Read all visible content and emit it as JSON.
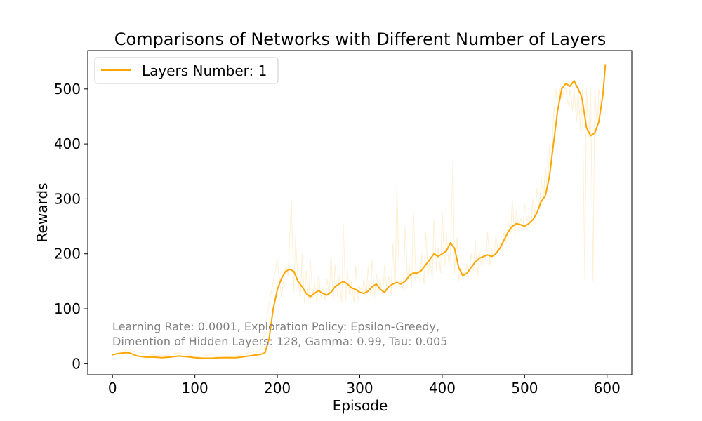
{
  "chart_data": {
    "type": "line",
    "title": "Comparisons of Networks with Different Number of Layers",
    "xlabel": "Episode",
    "ylabel": "Rewards",
    "xlim": [
      -30,
      630
    ],
    "ylim": [
      -20,
      570
    ],
    "xticks": [
      0,
      100,
      200,
      300,
      400,
      500,
      600
    ],
    "yticks": [
      0,
      100,
      200,
      300,
      400,
      500
    ],
    "grid": false,
    "legend_position": "top-left",
    "annotation": [
      "Learning Rate: 0.0001, Exploration Policy: Epsilon-Greedy,",
      "Dimention of Hidden Layers: 128, Gamma: 0.99, Tau: 0.005"
    ],
    "colors": {
      "series": "#FFA500",
      "raw": "#FFE4B5",
      "annotation": "#808080"
    },
    "series": [
      {
        "name": "Layers Number: 1",
        "smoothed": {
          "x": [
            0,
            5,
            10,
            15,
            20,
            25,
            30,
            40,
            50,
            60,
            70,
            80,
            90,
            100,
            110,
            120,
            130,
            140,
            150,
            160,
            170,
            175,
            180,
            185,
            190,
            195,
            200,
            205,
            210,
            215,
            220,
            225,
            230,
            235,
            240,
            245,
            250,
            255,
            260,
            265,
            270,
            275,
            280,
            285,
            290,
            295,
            300,
            305,
            310,
            315,
            320,
            325,
            330,
            335,
            340,
            345,
            350,
            355,
            360,
            365,
            370,
            375,
            380,
            385,
            390,
            395,
            400,
            405,
            410,
            415,
            420,
            425,
            430,
            435,
            440,
            445,
            450,
            455,
            460,
            465,
            470,
            475,
            480,
            485,
            490,
            495,
            500,
            505,
            510,
            515,
            520,
            525,
            530,
            535,
            540,
            545,
            550,
            555,
            560,
            562,
            565,
            568,
            570,
            575,
            580,
            585,
            590,
            595,
            598
          ],
          "y": [
            16,
            18,
            19,
            20,
            20,
            17,
            14,
            12,
            12,
            11,
            12,
            14,
            13,
            11,
            10,
            10,
            11,
            11,
            11,
            13,
            15,
            16,
            17,
            20,
            45,
            100,
            135,
            155,
            168,
            172,
            168,
            150,
            140,
            128,
            122,
            128,
            133,
            128,
            125,
            130,
            140,
            145,
            150,
            145,
            138,
            135,
            130,
            128,
            132,
            140,
            145,
            135,
            130,
            140,
            145,
            148,
            145,
            150,
            160,
            165,
            165,
            170,
            180,
            190,
            200,
            195,
            200,
            205,
            220,
            210,
            175,
            160,
            165,
            175,
            185,
            192,
            195,
            198,
            195,
            200,
            210,
            225,
            240,
            250,
            255,
            253,
            250,
            255,
            262,
            275,
            295,
            305,
            340,
            400,
            460,
            500,
            510,
            505,
            515,
            508,
            500,
            490,
            480,
            430,
            415,
            420,
            440,
            490,
            545
          ]
        },
        "raw": {
          "x": [
            0,
            20,
            40,
            60,
            80,
            100,
            120,
            140,
            160,
            180,
            185,
            190,
            195,
            200,
            205,
            210,
            213,
            217,
            220,
            222,
            225,
            228,
            230,
            233,
            235,
            238,
            240,
            243,
            245,
            248,
            250,
            253,
            255,
            258,
            260,
            263,
            265,
            268,
            270,
            273,
            275,
            278,
            280,
            283,
            285,
            288,
            290,
            293,
            295,
            298,
            300,
            303,
            305,
            308,
            310,
            313,
            315,
            318,
            320,
            323,
            325,
            328,
            330,
            333,
            335,
            338,
            340,
            343,
            345,
            348,
            350,
            353,
            355,
            358,
            360,
            363,
            365,
            368,
            370,
            373,
            375,
            378,
            380,
            383,
            385,
            388,
            390,
            393,
            395,
            398,
            400,
            403,
            405,
            408,
            410,
            413,
            415,
            418,
            420,
            423,
            425,
            428,
            430,
            433,
            435,
            438,
            440,
            443,
            445,
            448,
            450,
            453,
            455,
            458,
            460,
            463,
            465,
            468,
            470,
            473,
            475,
            478,
            480,
            483,
            485,
            488,
            490,
            493,
            495,
            498,
            500,
            503,
            505,
            508,
            510,
            513,
            515,
            518,
            520,
            523,
            525,
            528,
            530,
            533,
            535,
            538,
            540,
            543,
            545,
            548,
            550,
            553,
            555,
            558,
            560,
            563,
            565,
            568,
            570,
            573,
            575,
            578,
            580,
            583,
            585,
            588,
            590,
            593,
            595,
            598
          ],
          "y": [
            16,
            25,
            18,
            14,
            20,
            12,
            16,
            12,
            18,
            25,
            60,
            110,
            150,
            190,
            120,
            180,
            160,
            300,
            130,
            230,
            150,
            120,
            200,
            110,
            170,
            115,
            190,
            120,
            150,
            110,
            160,
            120,
            140,
            115,
            155,
            125,
            200,
            115,
            180,
            120,
            160,
            110,
            255,
            115,
            170,
            120,
            150,
            110,
            180,
            115,
            140,
            130,
            155,
            120,
            175,
            125,
            190,
            120,
            165,
            135,
            150,
            125,
            180,
            130,
            160,
            125,
            220,
            130,
            330,
            140,
            150,
            135,
            250,
            150,
            180,
            140,
            280,
            160,
            165,
            150,
            200,
            145,
            240,
            160,
            190,
            155,
            260,
            170,
            210,
            165,
            280,
            175,
            240,
            180,
            200,
            370,
            165,
            230,
            150,
            175,
            160,
            170,
            180,
            165,
            200,
            170,
            225,
            160,
            205,
            175,
            200,
            185,
            240,
            180,
            210,
            190,
            235,
            200,
            220,
            210,
            240,
            220,
            260,
            235,
            300,
            230,
            280,
            240,
            265,
            250,
            290,
            260,
            270,
            255,
            300,
            270,
            320,
            280,
            340,
            300,
            360,
            310,
            400,
            380,
            450,
            500,
            460,
            500,
            480,
            500,
            500,
            470,
            500,
            460,
            500,
            440,
            500,
            420,
            500,
            150,
            500,
            410,
            500,
            150,
            500,
            430,
            500,
            470,
            500,
            540
          ]
        }
      }
    ]
  }
}
